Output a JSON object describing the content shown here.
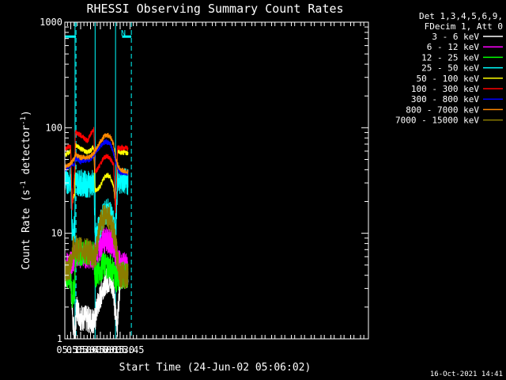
{
  "chart_data": {
    "type": "line",
    "title": "RHESSI Observing Summary Count Rates",
    "xlabel": "Start Time (24-Jun-02 05:06:02)",
    "ylabel_main": "Count Rate (s",
    "ylabel_sup1": "-1",
    "ylabel_mid": " detector",
    "ylabel_sup2": "-1",
    "ylabel_end": ")",
    "timestamp": "16-Oct-2021 14:41",
    "y_scale": "log",
    "ylim": [
      1,
      1000
    ],
    "xlim_min": [
      306,
      767
    ],
    "xticks": [
      {
        "t": 315,
        "label": "05:15"
      },
      {
        "t": 330,
        "label": "05:30"
      },
      {
        "t": 345,
        "label": "05:45"
      },
      {
        "t": 360,
        "label": "06:00"
      },
      {
        "t": 375,
        "label": "06:15"
      },
      {
        "t": 390,
        "label": "06:30"
      },
      {
        "t": 405,
        "label": "06:45"
      }
    ],
    "yticks": [
      {
        "v": 1,
        "label": "1"
      },
      {
        "v": 10,
        "label": "10"
      },
      {
        "v": 100,
        "label": "100"
      },
      {
        "v": 1000,
        "label": "1000"
      }
    ],
    "legend": {
      "header1": "Det 1,3,4,5,6,9,",
      "header2": "FDecim 1, Att 0",
      "placement": "right"
    },
    "annotation_N": "N",
    "night_intervals": [
      [
        306,
        323
      ],
      [
        393,
        407
      ]
    ],
    "dashed_markers": [
      323,
      407
    ],
    "solid_markers": [
      321.5,
      352,
      383
    ],
    "series": [
      {
        "name": "3 - 6 keV",
        "color": "#ffffff",
        "points": [
          [
            306,
            4
          ],
          [
            315,
            4
          ],
          [
            318,
            1.5
          ],
          [
            321,
            1
          ],
          [
            324,
            2
          ],
          [
            330,
            1.6
          ],
          [
            345,
            1.5
          ],
          [
            352,
            1.5
          ],
          [
            355,
            2
          ],
          [
            360,
            2.5
          ],
          [
            365,
            3.3
          ],
          [
            370,
            3.6
          ],
          [
            375,
            3.5
          ],
          [
            380,
            3.2
          ],
          [
            382,
            1.8
          ],
          [
            386,
            1.4
          ],
          [
            390,
            4
          ],
          [
            402,
            4
          ]
        ]
      },
      {
        "name": "6 - 12 keV",
        "color": "#ff00ff",
        "points": [
          [
            306,
            5
          ],
          [
            315,
            5
          ],
          [
            318,
            5.5
          ],
          [
            321,
            6.2
          ],
          [
            325,
            6.3
          ],
          [
            330,
            6.2
          ],
          [
            340,
            6.2
          ],
          [
            350,
            6
          ],
          [
            355,
            6.6
          ],
          [
            360,
            7.5
          ],
          [
            365,
            8.5
          ],
          [
            370,
            8.7
          ],
          [
            375,
            8.4
          ],
          [
            380,
            7.3
          ],
          [
            384,
            6
          ],
          [
            390,
            5
          ],
          [
            402,
            5
          ]
        ]
      },
      {
        "name": "12 - 25 keV",
        "color": "#00ff00",
        "points": [
          [
            306,
            4
          ],
          [
            315,
            4
          ],
          [
            317,
            2.5
          ],
          [
            321,
            3
          ],
          [
            322,
            6.5
          ],
          [
            330,
            6.6
          ],
          [
            340,
            6.4
          ],
          [
            350,
            6.2
          ],
          [
            352,
            4
          ],
          [
            360,
            4.5
          ],
          [
            365,
            5
          ],
          [
            370,
            5
          ],
          [
            375,
            4.8
          ],
          [
            380,
            4.5
          ],
          [
            382,
            4
          ],
          [
            386,
            3.5
          ],
          [
            390,
            4
          ],
          [
            402,
            4
          ]
        ]
      },
      {
        "name": "25 - 50 keV",
        "color": "#00ffff",
        "points": [
          [
            306,
            31
          ],
          [
            315,
            32
          ],
          [
            317,
            11
          ],
          [
            321,
            11
          ],
          [
            322,
            31
          ],
          [
            330,
            30
          ],
          [
            340,
            29
          ],
          [
            350,
            30
          ],
          [
            352,
            9
          ],
          [
            360,
            12
          ],
          [
            365,
            15
          ],
          [
            370,
            16
          ],
          [
            375,
            15.5
          ],
          [
            380,
            12
          ],
          [
            383,
            9
          ],
          [
            386,
            32
          ],
          [
            390,
            31
          ],
          [
            402,
            31
          ]
        ]
      },
      {
        "name": "50 - 100 keV",
        "color": "#ffff00",
        "points": [
          [
            306,
            55
          ],
          [
            315,
            60
          ],
          [
            317,
            19
          ],
          [
            321,
            24
          ],
          [
            322,
            68
          ],
          [
            330,
            64
          ],
          [
            340,
            58
          ],
          [
            350,
            65
          ],
          [
            352,
            25
          ],
          [
            360,
            28
          ],
          [
            365,
            33
          ],
          [
            370,
            36
          ],
          [
            375,
            34
          ],
          [
            380,
            28
          ],
          [
            383,
            18
          ],
          [
            386,
            60
          ],
          [
            390,
            58
          ],
          [
            402,
            58
          ]
        ]
      },
      {
        "name": "100 - 300 keV",
        "color": "#ff0000",
        "points": [
          [
            306,
            63
          ],
          [
            315,
            67
          ],
          [
            317,
            17
          ],
          [
            321,
            38
          ],
          [
            322,
            92
          ],
          [
            330,
            85
          ],
          [
            340,
            75
          ],
          [
            350,
            97
          ],
          [
            352,
            38
          ],
          [
            360,
            45
          ],
          [
            365,
            52
          ],
          [
            370,
            54
          ],
          [
            375,
            51
          ],
          [
            380,
            45
          ],
          [
            383,
            16
          ],
          [
            386,
            65
          ],
          [
            390,
            64
          ],
          [
            402,
            64
          ]
        ]
      },
      {
        "name": "300 - 800 keV",
        "color": "#0000ff",
        "points": [
          [
            306,
            40
          ],
          [
            315,
            45
          ],
          [
            321,
            45
          ],
          [
            322,
            52
          ],
          [
            330,
            48
          ],
          [
            345,
            50
          ],
          [
            352,
            58
          ],
          [
            360,
            66
          ],
          [
            365,
            72
          ],
          [
            370,
            74
          ],
          [
            375,
            70
          ],
          [
            380,
            58
          ],
          [
            384,
            45
          ],
          [
            390,
            38
          ],
          [
            402,
            37
          ]
        ]
      },
      {
        "name": "800 - 7000 keV",
        "color": "#ff8800",
        "points": [
          [
            306,
            42
          ],
          [
            315,
            46
          ],
          [
            321,
            52
          ],
          [
            322,
            56
          ],
          [
            330,
            52
          ],
          [
            345,
            53
          ],
          [
            352,
            60
          ],
          [
            360,
            74
          ],
          [
            365,
            82
          ],
          [
            370,
            86
          ],
          [
            375,
            83
          ],
          [
            380,
            70
          ],
          [
            384,
            48
          ],
          [
            390,
            40
          ],
          [
            402,
            38
          ]
        ]
      },
      {
        "name": "7000 - 15000 keV",
        "color": "#8b7d00",
        "points": [
          [
            306,
            4
          ],
          [
            315,
            5
          ],
          [
            318,
            7
          ],
          [
            322,
            7.2
          ],
          [
            330,
            7
          ],
          [
            345,
            6.5
          ],
          [
            352,
            6
          ],
          [
            356,
            8.5
          ],
          [
            360,
            12
          ],
          [
            365,
            14.5
          ],
          [
            370,
            15
          ],
          [
            375,
            14
          ],
          [
            380,
            10
          ],
          [
            384,
            7
          ],
          [
            390,
            4
          ],
          [
            402,
            4
          ]
        ]
      }
    ],
    "night_level": 730
  }
}
